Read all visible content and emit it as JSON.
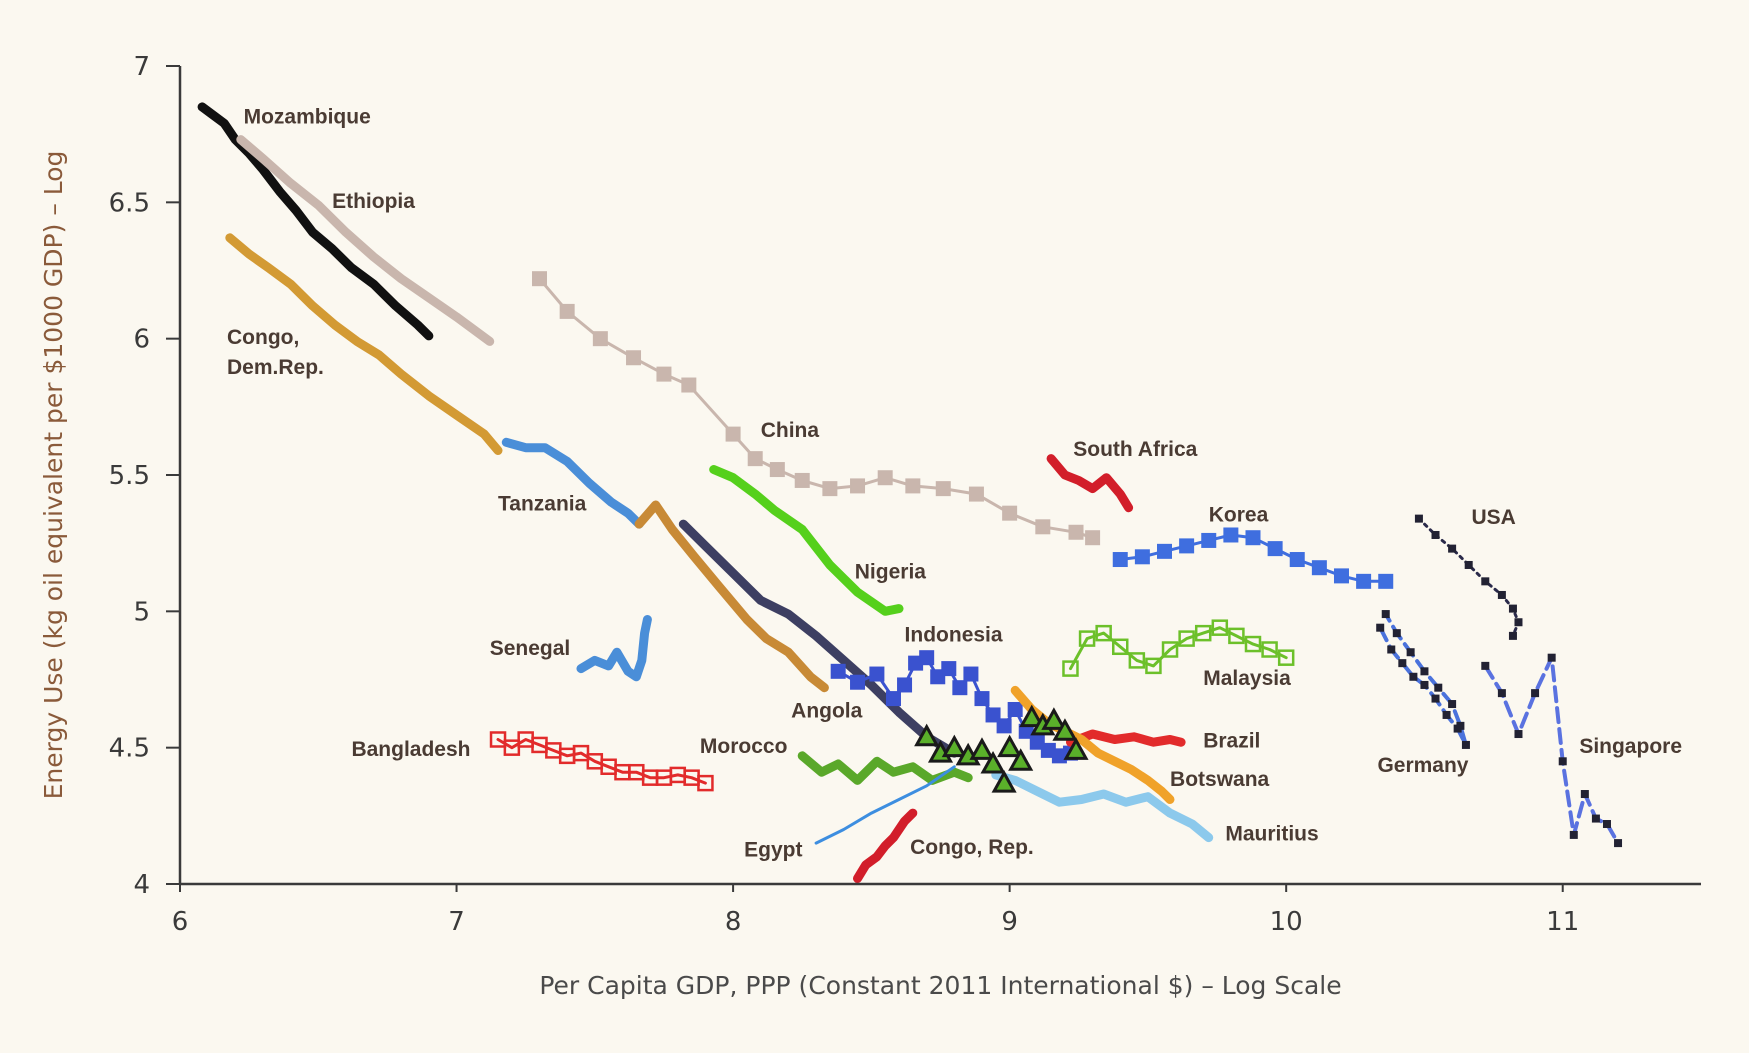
{
  "chart_data": {
    "type": "line",
    "xlabel": "Per Capita GDP, PPP (Constant 2011 International $) – Log Scale",
    "ylabel": "Energy Use (kg oil equivalent per $1000 GDP) – Log",
    "xlim": [
      6,
      11.5
    ],
    "ylim": [
      4,
      7
    ],
    "xticks": [
      "6",
      "7",
      "8",
      "9",
      "10",
      "11"
    ],
    "yticks": [
      "4",
      "4.5",
      "5",
      "5.5",
      "6",
      "6.5",
      "7"
    ],
    "colors": {
      "axis": "#3a3a3a",
      "xlabel": "#4a4a4a",
      "ylabel": "#8a5a3a",
      "label": "#4a3b33"
    },
    "series": [
      {
        "name": "Mozambique",
        "color": "#111111",
        "style": "thick",
        "x": [
          6.08,
          6.12,
          6.16,
          6.2,
          6.25,
          6.3,
          6.36,
          6.42,
          6.48,
          6.55,
          6.62,
          6.7,
          6.78,
          6.86,
          6.9
        ],
        "y": [
          6.85,
          6.82,
          6.79,
          6.73,
          6.68,
          6.62,
          6.54,
          6.47,
          6.39,
          6.33,
          6.26,
          6.2,
          6.12,
          6.05,
          6.01
        ]
      },
      {
        "name": "Ethiopia",
        "color": "#c9b6ad",
        "style": "thick",
        "x": [
          6.22,
          6.3,
          6.4,
          6.5,
          6.6,
          6.7,
          6.8,
          6.9,
          7.0,
          7.12
        ],
        "y": [
          6.73,
          6.66,
          6.57,
          6.49,
          6.39,
          6.3,
          6.22,
          6.15,
          6.08,
          5.99
        ]
      },
      {
        "name": "Congo, Dem.Rep.",
        "color": "#d39a34",
        "style": "thick",
        "x": [
          6.18,
          6.25,
          6.32,
          6.4,
          6.48,
          6.56,
          6.64,
          6.72,
          6.8,
          6.9,
          7.0,
          7.1,
          7.15
        ],
        "y": [
          6.37,
          6.31,
          6.26,
          6.2,
          6.12,
          6.05,
          5.99,
          5.94,
          5.87,
          5.79,
          5.72,
          5.65,
          5.59
        ]
      },
      {
        "name": "China",
        "color": "#c9b6ad",
        "style": "square",
        "x": [
          7.3,
          7.4,
          7.52,
          7.64,
          7.75,
          7.84,
          8.0,
          8.08,
          8.16,
          8.25,
          8.35,
          8.45,
          8.55,
          8.65,
          8.76,
          8.88,
          9.0,
          9.12,
          9.24,
          9.3
        ],
        "y": [
          6.22,
          6.1,
          6.0,
          5.93,
          5.87,
          5.83,
          5.65,
          5.56,
          5.52,
          5.48,
          5.45,
          5.46,
          5.49,
          5.46,
          5.45,
          5.43,
          5.36,
          5.31,
          5.29,
          5.27
        ]
      },
      {
        "name": "Tanzania",
        "color": "#4a8ed8",
        "style": "thick",
        "x": [
          7.18,
          7.25,
          7.32,
          7.4,
          7.48,
          7.56,
          7.62,
          7.66
        ],
        "y": [
          5.62,
          5.6,
          5.6,
          5.55,
          5.47,
          5.4,
          5.36,
          5.32
        ]
      },
      {
        "name": "Angola",
        "color": "#c88a36",
        "style": "thick",
        "x": [
          7.66,
          7.72,
          7.78,
          7.86,
          7.95,
          8.05,
          8.12,
          8.2,
          8.28,
          8.33
        ],
        "y": [
          5.32,
          5.39,
          5.3,
          5.2,
          5.09,
          4.97,
          4.9,
          4.85,
          4.76,
          4.72
        ]
      },
      {
        "name": "Indonesia (line)",
        "color": "#3d3f62",
        "style": "thick",
        "x": [
          7.82,
          7.9,
          8.0,
          8.1,
          8.2,
          8.3,
          8.4,
          8.5,
          8.6,
          8.7,
          8.8
        ],
        "y": [
          5.32,
          5.24,
          5.14,
          5.04,
          4.99,
          4.91,
          4.82,
          4.73,
          4.63,
          4.54,
          4.48
        ]
      },
      {
        "name": "Indonesia",
        "color": "#3a52cf",
        "style": "square",
        "x": [
          8.38,
          8.45,
          8.52,
          8.58,
          8.62,
          8.66,
          8.7,
          8.74,
          8.78,
          8.82,
          8.86,
          8.9,
          8.94,
          8.98,
          9.02,
          9.06,
          9.1,
          9.14,
          9.18,
          9.22
        ],
        "y": [
          4.78,
          4.74,
          4.77,
          4.68,
          4.73,
          4.81,
          4.83,
          4.76,
          4.79,
          4.72,
          4.77,
          4.68,
          4.62,
          4.58,
          4.64,
          4.56,
          4.52,
          4.49,
          4.47,
          4.48
        ]
      },
      {
        "name": "Nigeria",
        "color": "#55d01c",
        "style": "thick",
        "x": [
          7.93,
          8.0,
          8.08,
          8.15,
          8.25,
          8.35,
          8.45,
          8.55,
          8.6
        ],
        "y": [
          5.52,
          5.49,
          5.43,
          5.37,
          5.3,
          5.17,
          5.07,
          5.0,
          5.01
        ]
      },
      {
        "name": "Senegal",
        "color": "#4a8ed8",
        "style": "thick",
        "x": [
          7.45,
          7.5,
          7.55,
          7.58,
          7.62,
          7.65,
          7.67,
          7.68,
          7.69
        ],
        "y": [
          4.79,
          4.82,
          4.8,
          4.85,
          4.78,
          4.76,
          4.82,
          4.92,
          4.97
        ]
      },
      {
        "name": "Bangladesh",
        "color": "#e22b2b",
        "style": "square-open",
        "x": [
          7.15,
          7.2,
          7.25,
          7.3,
          7.35,
          7.4,
          7.45,
          7.5,
          7.55,
          7.6,
          7.65,
          7.7,
          7.75,
          7.8,
          7.85,
          7.9
        ],
        "y": [
          4.53,
          4.5,
          4.53,
          4.51,
          4.49,
          4.47,
          4.48,
          4.45,
          4.43,
          4.41,
          4.41,
          4.39,
          4.39,
          4.4,
          4.39,
          4.37
        ]
      },
      {
        "name": "Morocco",
        "color": "#5aa82a",
        "style": "thick",
        "x": [
          8.25,
          8.32,
          8.38,
          8.45,
          8.52,
          8.58,
          8.65,
          8.72,
          8.8,
          8.85
        ],
        "y": [
          4.47,
          4.41,
          4.44,
          4.38,
          4.45,
          4.41,
          4.43,
          4.38,
          4.41,
          4.39
        ]
      },
      {
        "name": "Egypt",
        "color": "#3d8ee0",
        "style": "thin",
        "x": [
          8.3,
          8.4,
          8.5,
          8.6,
          8.7,
          8.8
        ],
        "y": [
          4.15,
          4.2,
          4.26,
          4.31,
          4.36,
          4.43
        ]
      },
      {
        "name": "Congo, Rep.",
        "color": "#d21e2a",
        "style": "thick",
        "x": [
          8.45,
          8.48,
          8.52,
          8.55,
          8.58,
          8.62,
          8.65
        ],
        "y": [
          4.02,
          4.07,
          4.1,
          4.14,
          4.17,
          4.23,
          4.26
        ]
      },
      {
        "name": "South Africa",
        "color": "#d21e2a",
        "style": "thick",
        "x": [
          9.15,
          9.2,
          9.25,
          9.3,
          9.35,
          9.4,
          9.43
        ],
        "y": [
          5.56,
          5.5,
          5.48,
          5.45,
          5.49,
          5.43,
          5.38
        ]
      },
      {
        "name": "Korea",
        "color": "#3f6edf",
        "style": "square",
        "x": [
          9.4,
          9.48,
          9.56,
          9.64,
          9.72,
          9.8,
          9.88,
          9.96,
          10.04,
          10.12,
          10.2,
          10.28,
          10.36
        ],
        "y": [
          5.19,
          5.2,
          5.22,
          5.24,
          5.26,
          5.28,
          5.27,
          5.23,
          5.19,
          5.16,
          5.13,
          5.11,
          5.11
        ]
      },
      {
        "name": "Malaysia",
        "color": "#6cc02a",
        "style": "square-open",
        "x": [
          9.22,
          9.28,
          9.34,
          9.4,
          9.46,
          9.52,
          9.58,
          9.64,
          9.7,
          9.76,
          9.82,
          9.88,
          9.94,
          10.0
        ],
        "y": [
          4.79,
          4.9,
          4.92,
          4.87,
          4.82,
          4.8,
          4.86,
          4.9,
          4.92,
          4.94,
          4.91,
          4.88,
          4.86,
          4.83
        ]
      },
      {
        "name": "Brazil",
        "color": "#e22b2b",
        "style": "thick",
        "x": [
          9.22,
          9.3,
          9.38,
          9.45,
          9.52,
          9.58,
          9.62
        ],
        "y": [
          4.52,
          4.55,
          4.53,
          4.54,
          4.52,
          4.53,
          4.52
        ]
      },
      {
        "name": "Botswana",
        "color": "#f0a22a",
        "style": "thick",
        "x": [
          9.02,
          9.08,
          9.14,
          9.2,
          9.26,
          9.32,
          9.38,
          9.44,
          9.5,
          9.55,
          9.58
        ],
        "y": [
          4.71,
          4.64,
          4.59,
          4.56,
          4.53,
          4.48,
          4.45,
          4.42,
          4.38,
          4.34,
          4.31
        ]
      },
      {
        "name": "Mauritius",
        "color": "#8cc9ec",
        "style": "thick",
        "x": [
          8.95,
          9.02,
          9.1,
          9.18,
          9.26,
          9.34,
          9.42,
          9.5,
          9.58,
          9.66,
          9.72
        ],
        "y": [
          4.4,
          4.38,
          4.34,
          4.3,
          4.31,
          4.33,
          4.3,
          4.32,
          4.26,
          4.22,
          4.17
        ]
      },
      {
        "name": "Angola triangles",
        "color": "#1a1a1a",
        "style": "triangle",
        "x": [
          8.7,
          8.75,
          8.8,
          8.85,
          8.9,
          8.94,
          8.98,
          9.0,
          9.04,
          9.08,
          9.12,
          9.16,
          9.2,
          9.24
        ],
        "y": [
          4.54,
          4.48,
          4.5,
          4.47,
          4.49,
          4.44,
          4.37,
          4.5,
          4.45,
          4.61,
          4.58,
          4.6,
          4.56,
          4.49
        ]
      },
      {
        "name": "USA",
        "color": "#2a2a4a",
        "style": "dotted",
        "x": [
          10.48,
          10.54,
          10.6,
          10.66,
          10.72,
          10.78,
          10.82,
          10.84,
          10.82
        ],
        "y": [
          5.34,
          5.28,
          5.23,
          5.17,
          5.11,
          5.06,
          5.01,
          4.96,
          4.91
        ]
      },
      {
        "name": "Germany",
        "color": "#4a72dc",
        "style": "dash",
        "x": [
          10.34,
          10.38,
          10.42,
          10.46,
          10.5,
          10.54,
          10.58,
          10.62,
          10.65,
          10.63,
          10.6,
          10.55,
          10.5,
          10.45,
          10.4,
          10.36
        ],
        "y": [
          4.94,
          4.86,
          4.81,
          4.76,
          4.73,
          4.68,
          4.62,
          4.57,
          4.51,
          4.58,
          4.66,
          4.72,
          4.78,
          4.85,
          4.92,
          4.99
        ]
      },
      {
        "name": "Singapore",
        "color": "#5a72e0",
        "style": "dash",
        "x": [
          10.72,
          10.78,
          10.84,
          10.9,
          10.96,
          11.0,
          11.04,
          11.08,
          11.12,
          11.16,
          11.2
        ],
        "y": [
          4.8,
          4.7,
          4.55,
          4.7,
          4.83,
          4.45,
          4.18,
          4.33,
          4.24,
          4.22,
          4.15
        ]
      }
    ],
    "labels": [
      {
        "text": "Mozambique",
        "x": 6.23,
        "y": 6.79
      },
      {
        "text": "Ethiopia",
        "x": 6.55,
        "y": 6.48
      },
      {
        "text": "Congo,",
        "x": 6.17,
        "y": 5.98
      },
      {
        "text": "Dem.Rep.",
        "x": 6.17,
        "y": 5.87
      },
      {
        "text": "China",
        "x": 8.1,
        "y": 5.64
      },
      {
        "text": "Tanzania",
        "x": 7.15,
        "y": 5.37
      },
      {
        "text": "South Africa",
        "x": 9.23,
        "y": 5.57
      },
      {
        "text": "Korea",
        "x": 9.72,
        "y": 5.33
      },
      {
        "text": "USA",
        "x": 10.67,
        "y": 5.32
      },
      {
        "text": "Nigeria",
        "x": 8.44,
        "y": 5.12
      },
      {
        "text": "Indonesia",
        "x": 8.62,
        "y": 4.89
      },
      {
        "text": "Senegal",
        "x": 7.12,
        "y": 4.84
      },
      {
        "text": "Malaysia",
        "x": 9.7,
        "y": 4.73
      },
      {
        "text": "Angola",
        "x": 8.21,
        "y": 4.61
      },
      {
        "text": "Bangladesh",
        "x": 6.62,
        "y": 4.47
      },
      {
        "text": "Morocco",
        "x": 7.88,
        "y": 4.48
      },
      {
        "text": "Brazil",
        "x": 9.7,
        "y": 4.5
      },
      {
        "text": "Botswana",
        "x": 9.58,
        "y": 4.36
      },
      {
        "text": "Germany",
        "x": 10.33,
        "y": 4.41
      },
      {
        "text": "Singapore",
        "x": 11.06,
        "y": 4.48
      },
      {
        "text": "Mauritius",
        "x": 9.78,
        "y": 4.16
      },
      {
        "text": "Egypt",
        "x": 8.04,
        "y": 4.1
      },
      {
        "text": "Congo, Rep.",
        "x": 8.64,
        "y": 4.11
      }
    ]
  }
}
